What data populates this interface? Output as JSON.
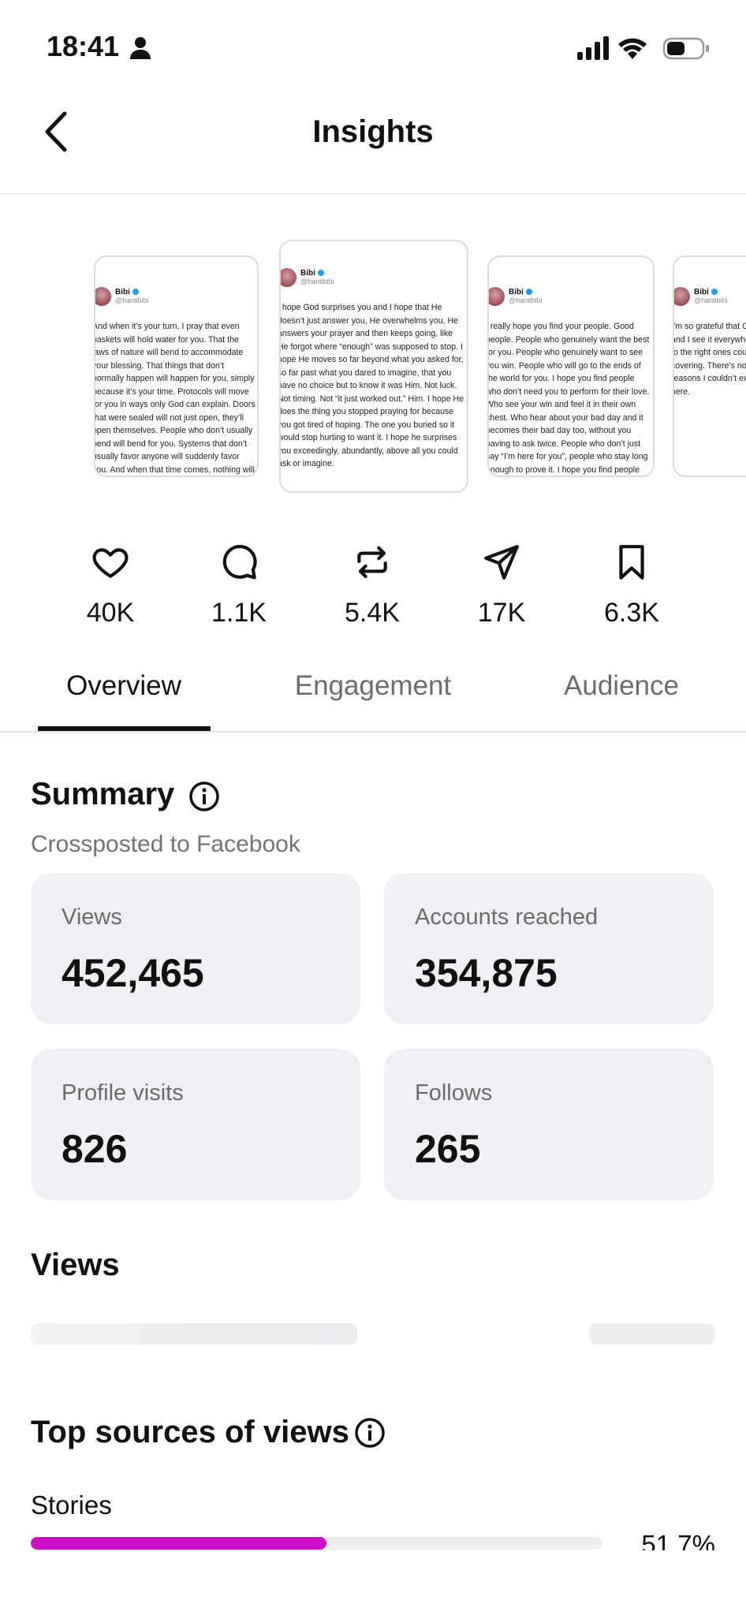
{
  "status_bar": {
    "time": "18:41"
  },
  "header": {
    "title": "Insights"
  },
  "posts": [
    {
      "author": "Bibi",
      "handle": "@hantibibi",
      "text": "And when it’s your turn, I pray that even baskets will hold water for you. That the laws of nature will bend to accommodate your blessing. That things that don’t normally happen will happen for you, simply because it’s your time. Protocols will move for you in ways only God can explain. Doors that were sealed will not just open, they’ll open themselves. People who don’t usually bend will bend for you. Systems that don’t usually favor anyone will suddenly favor you. And when that time comes, nothing will be able to hold you back."
    },
    {
      "author": "Bibi",
      "handle": "@hantibibi",
      "text": "I hope God surprises you and I hope that He doesn’t just answer you, He overwhelms you, He answers your prayer and then keeps going, like He forgot where “enough” was supposed to stop. I hope He moves so far beyond what you asked for, so far past what you dared to imagine, that you have no choice but to know it was Him. Not luck. Not timing. Not “it just worked out.” Him. I hope He does the thing you stopped praying for because you got tired of hoping. The one you buried so it would stop hurting to want it. I hope he surprises you exceedingly, abundantly, above all you could ask or imagine."
    },
    {
      "author": "Bibi",
      "handle": "@hantibibi",
      "text": "I really hope you find your people. Good people. People who genuinely want the best for you. People who genuinely want to see you win. People who will go to the ends of the world for you. I hope you find people who don’t need you to perform for their love. Who see your win and feel it in their own chest. Who hear about your bad day and it becomes their bad day too, without you having to ask twice. People who don’t just say “I’m here for you”, people who stay long enough to prove it. I hope you find people who will take you as their own. Love you like their own, support you, and hold you up every time. I really hope you find people who choose you again and again and again."
    },
    {
      "author": "Bibi",
      "handle": "@hantibibi",
      "text": "I’m so grateful that G hands off me, not for and I see it everywher to better ones could to the right ones coul being covered even w covering. There’s no s the hand of God movi reasons I couldn’t exp make sense, he’s nev here."
    }
  ],
  "stats": [
    "40K",
    "1.1K",
    "5.4K",
    "17K",
    "6.3K"
  ],
  "tabs": [
    "Overview",
    "Engagement",
    "Audience"
  ],
  "summary": {
    "title": "Summary",
    "subtitle": "Crossposted to Facebook",
    "tiles": [
      {
        "label": "Views",
        "value": "452,465"
      },
      {
        "label": "Accounts reached",
        "value": "354,875"
      },
      {
        "label": "Profile visits",
        "value": "826"
      },
      {
        "label": "Follows",
        "value": "265"
      }
    ]
  },
  "views_section": {
    "title": "Views"
  },
  "top_sources": {
    "title": "Top sources of views",
    "items": [
      {
        "label": "Stories",
        "value": 51.7,
        "value_label": "51.7%"
      }
    ]
  }
}
